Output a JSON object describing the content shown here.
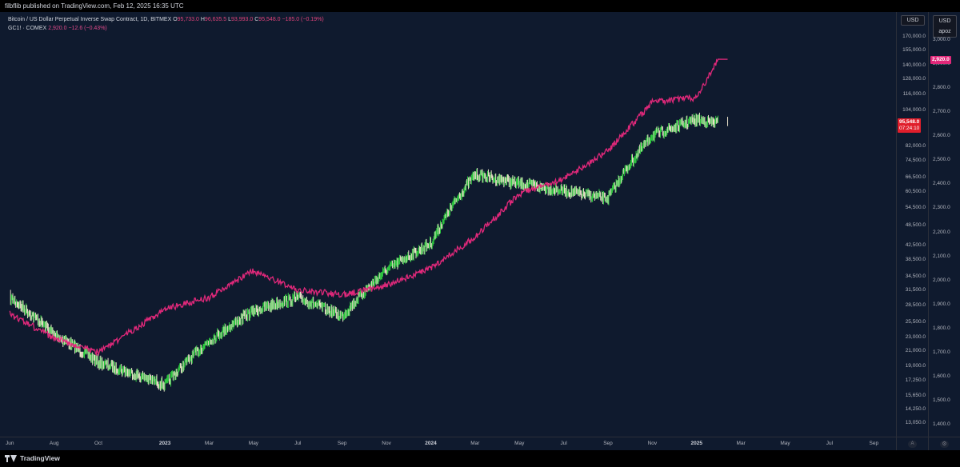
{
  "header": {
    "published": "filbflib published on TradingView.com, Feb 12, 2025 16:35 UTC"
  },
  "legend": {
    "btc_name": "Bitcoin / US Dollar Perpetual Inverse Swap Contract, 1D, BITMEX",
    "btc_o_label": "O",
    "btc_o": "95,733.0",
    "btc_h_label": "H",
    "btc_h": "96,635.5",
    "btc_l_label": "L",
    "btc_l": "93,993.0",
    "btc_c_label": "C",
    "btc_c": "95,548.0",
    "btc_chg": "−185.0 (−0.19%)",
    "gold_name": "GC1! · COMEX",
    "gold_val": "2,920.0",
    "gold_chg": "−12.6 (−0.43%)"
  },
  "axes": {
    "left_unit": "USD",
    "right_unit": "USD",
    "right_sub": "apoz",
    "btc_ticks": [
      "170,000.0",
      "155,000.0",
      "140,000.0",
      "128,000.0",
      "116,000.0",
      "104,000.0",
      "82,000.0",
      "74,500.0",
      "66,500.0",
      "60,500.0",
      "54,500.0",
      "48,500.0",
      "42,500.0",
      "38,500.0",
      "34,500.0",
      "31,500.0",
      "28,500.0",
      "25,500.0",
      "23,000.0",
      "21,000.0",
      "19,000.0",
      "17,250.0",
      "15,650.0",
      "14,250.0",
      "13,050.0"
    ],
    "gold_ticks": [
      "3,000.0",
      "2,900.0",
      "2,800.0",
      "2,700.0",
      "2,600.0",
      "2,500.0",
      "2,400.0",
      "2,300.0",
      "2,200.0",
      "2,100.0",
      "2,000.0",
      "1,900.0",
      "1,800.0",
      "1,700.0",
      "1,600.0",
      "1,500.0",
      "1,400.0"
    ],
    "btc_price_tag": "95,548.0",
    "btc_countdown": "07:24:10",
    "gold_price_tag": "2,920.0",
    "x_ticks": [
      "Jun",
      "Aug",
      "Oct",
      "2023",
      "Mar",
      "May",
      "Jul",
      "Sep",
      "Nov",
      "2024",
      "Mar",
      "May",
      "Jul",
      "Sep",
      "Nov",
      "2025",
      "Mar",
      "May",
      "Jul",
      "Sep"
    ],
    "auto_label": "A"
  },
  "footer": {
    "brand": "TradingView"
  },
  "colors": {
    "background": "#0f1a2e",
    "gold_line": "#e0287a",
    "candle_up": "#2ecc40",
    "candle_down": "#e8e0c8"
  },
  "chart_data": {
    "type": "line",
    "title": "",
    "x": [
      "2022-06",
      "2022-08",
      "2022-10",
      "2023-01",
      "2023-03",
      "2023-05",
      "2023-07",
      "2023-09",
      "2023-11",
      "2024-01",
      "2024-03",
      "2024-05",
      "2024-07",
      "2024-09",
      "2024-11",
      "2025-01",
      "2025-02"
    ],
    "series": [
      {
        "name": "Bitcoin / US Dollar Perpetual Inverse Swap Contract",
        "axis": "left",
        "values": [
          30000,
          23500,
          19500,
          16800,
          22500,
          27500,
          30000,
          26500,
          36000,
          43000,
          68000,
          64000,
          61000,
          58000,
          88000,
          98000,
          95548
        ]
      },
      {
        "name": "GC1! · COMEX",
        "axis": "right",
        "values": [
          1860,
          1760,
          1700,
          1880,
          1930,
          2040,
          1960,
          1940,
          1980,
          2050,
          2180,
          2360,
          2420,
          2540,
          2740,
          2760,
          2920
        ]
      }
    ],
    "left_scale": "log",
    "ylim_left": [
      12500,
      180000
    ],
    "ylim_right": [
      1380,
      3050
    ],
    "grid": false
  }
}
